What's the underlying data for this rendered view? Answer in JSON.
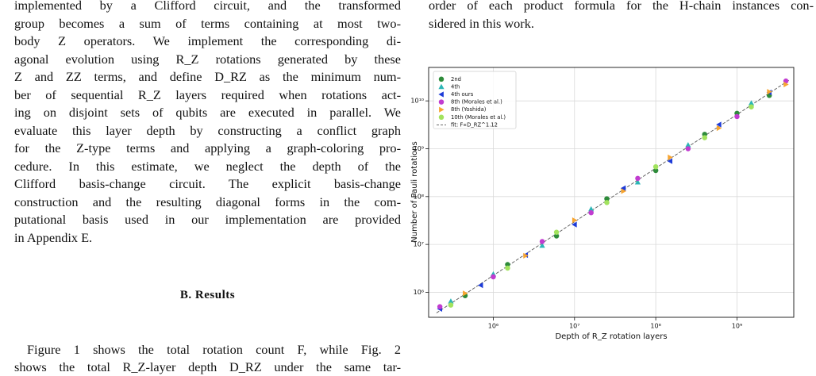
{
  "left_column": {
    "lines": [
      "implemented by a Clifford circuit, and the transformed",
      "group becomes a sum of terms containing at most two-",
      "body Z operators. We implement the corresponding di-",
      "agonal evolution using R_Z rotations generated by these",
      "Z and ZZ terms, and define D_RZ as the minimum num-",
      "ber of sequential R_Z layers required when rotations act-",
      "ing on disjoint sets of qubits are executed in parallel. We",
      "evaluate this layer depth by constructing a conflict graph",
      "for the Z-type terms and applying a graph-coloring pro-",
      "cedure.  In this estimate, we neglect the depth of the",
      "Clifford basis-change circuit.  The explicit basis-change",
      "construction and the resulting diagonal forms in the com-",
      "putational basis used in our implementation are provided",
      "in Appendix E."
    ],
    "heading": "B.    Results",
    "lines2": [
      "Figure 1 shows the total rotation count F, while Fig. 2",
      "shows the total R_Z-layer depth D_RZ under the same tar-"
    ]
  },
  "right_column": {
    "lines": [
      "order of each product formula for the H-chain instances con-",
      "sidered in this work."
    ]
  },
  "chart_data": {
    "type": "scatter",
    "xlabel": "Depth of R_Z rotation layers",
    "ylabel": "Number of Pauli rotations",
    "xscale": "log",
    "yscale": "log",
    "xlim": [
      160000,
      5000000000
    ],
    "ylim": [
      300000,
      50000000000
    ],
    "xticks": [
      {
        "value": 1000000,
        "label": "10⁶"
      },
      {
        "value": 10000000,
        "label": "10⁷"
      },
      {
        "value": 100000000,
        "label": "10⁸"
      },
      {
        "value": 1000000000,
        "label": "10⁹"
      }
    ],
    "yticks": [
      {
        "value": 1000000,
        "label": "10⁶"
      },
      {
        "value": 10000000,
        "label": "10⁷"
      },
      {
        "value": 100000000,
        "label": "10⁸"
      },
      {
        "value": 1000000000,
        "label": "10⁹"
      },
      {
        "value": 10000000000,
        "label": "10¹⁰"
      }
    ],
    "grid": true,
    "legend": "upper left",
    "series": [
      {
        "name": "2nd",
        "color": "#2e8b3a",
        "marker": "circle",
        "x": [
          450000,
          1500000,
          6000000,
          25000000,
          100000000,
          400000000,
          1000000000,
          2500000000
        ],
        "y": [
          850000,
          3800000,
          15000000,
          90000000,
          350000000,
          2000000000,
          5500000000,
          13000000000
        ]
      },
      {
        "name": "4th",
        "color": "#2bb5b5",
        "marker": "triangle-up",
        "x": [
          300000,
          1000000,
          4000000,
          16000000,
          60000000,
          250000000,
          1500000000
        ],
        "y": [
          650000,
          2400000,
          9500000,
          55000000,
          200000000,
          1200000000,
          9000000000
        ]
      },
      {
        "name": "4th ours",
        "color": "#1d3bd8",
        "marker": "triangle-left",
        "x": [
          220000,
          700000,
          2500000,
          10000000,
          40000000,
          150000000,
          600000000,
          2500000000
        ],
        "y": [
          450000,
          1400000,
          6000000,
          26000000,
          150000000,
          550000000,
          3200000000,
          15000000000
        ]
      },
      {
        "name": "8th (Morales et al.)",
        "color": "#c13cd0",
        "marker": "circle",
        "x": [
          220000,
          1000000,
          4000000,
          16000000,
          60000000,
          250000000,
          1000000000,
          4000000000
        ],
        "y": [
          500000,
          2100000,
          11500000,
          46000000,
          240000000,
          1000000000,
          4700000000,
          26000000000
        ]
      },
      {
        "name": "8th (Yoshida)",
        "color": "#f7a531",
        "marker": "triangle-right",
        "x": [
          450000,
          2500000,
          10000000,
          40000000,
          150000000,
          600000000,
          2500000000,
          4000000000
        ],
        "y": [
          950000,
          5800000,
          32000000,
          130000000,
          660000000,
          2700000000,
          15500000000,
          22000000000
        ]
      },
      {
        "name": "10th (Morales et al.)",
        "color": "#a2e35e",
        "marker": "circle",
        "x": [
          300000,
          1500000,
          6000000,
          25000000,
          100000000,
          400000000,
          1500000000
        ],
        "y": [
          540000,
          3200000,
          18000000,
          75000000,
          420000000,
          1700000000,
          7500000000
        ]
      }
    ],
    "fit": {
      "name": "fit: F∝D_RZ^1.12",
      "color": "#555555",
      "x": [
        200000,
        4500000000
      ],
      "y": [
        370000,
        28000000000
      ]
    }
  }
}
